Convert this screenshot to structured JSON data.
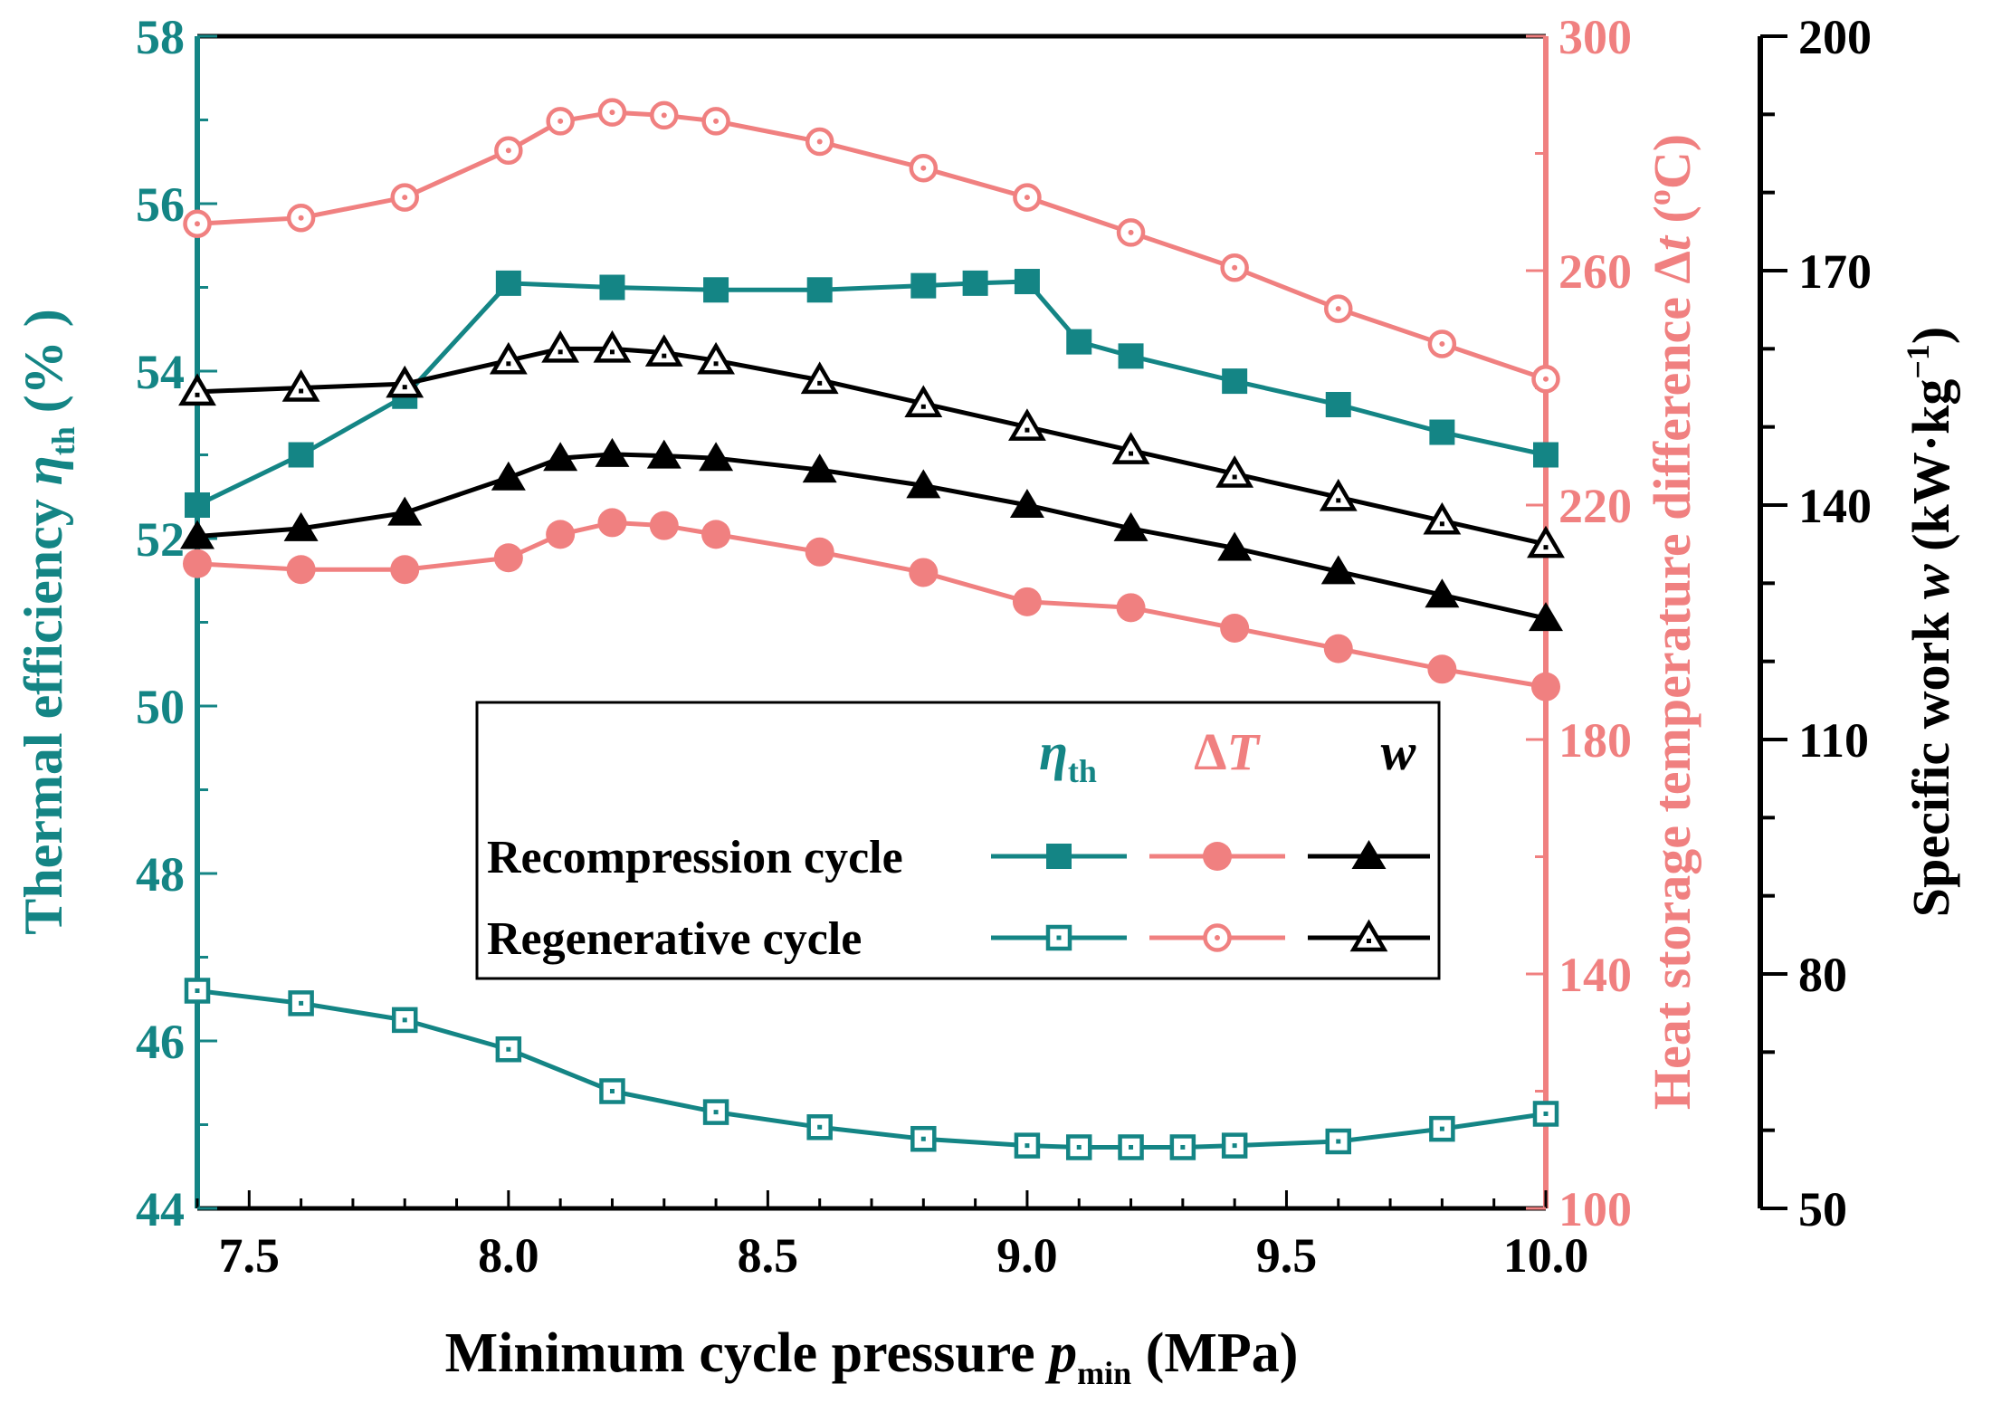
{
  "chart_data": {
    "type": "line",
    "title": "",
    "xlabel": {
      "main": "Minimum cycle pressure ",
      "var": "p",
      "sub": "min",
      "unit": " (MPa)"
    },
    "x_ticks": [
      "7.5",
      "8.0",
      "8.5",
      "9.0",
      "9.5",
      "10.0"
    ],
    "xlim": [
      7.4,
      10.0
    ],
    "axes": {
      "left": {
        "label": {
          "main": "Thermal efficiency ",
          "var": "η",
          "sub": "th",
          "unit": " (% )"
        },
        "ylim": [
          44,
          58
        ],
        "ticks": [
          "44",
          "46",
          "48",
          "50",
          "52",
          "54",
          "56",
          "58"
        ],
        "color": "#148585"
      },
      "right1": {
        "label": {
          "main": "Heat storage temperature difference Δ",
          "var": "t",
          "unit": " (",
          "sup": "o",
          "tail": "C)"
        },
        "ylim": [
          100,
          300
        ],
        "ticks": [
          "100",
          "140",
          "180",
          "220",
          "260",
          "300"
        ],
        "color": "#f08080"
      },
      "right2": {
        "label": {
          "main": "Specific work ",
          "var": "w",
          "unit": " (kW·kg",
          "sup": "−1",
          "tail": ")"
        },
        "ylim": [
          50,
          200
        ],
        "ticks": [
          "50",
          "80",
          "110",
          "140",
          "170",
          "200"
        ],
        "color": "#000000"
      }
    },
    "legend": {
      "position": "center-right",
      "headers": [
        {
          "sym": "η",
          "sub": "th",
          "color": "#148585"
        },
        {
          "sym": "Δ",
          "var": "T",
          "color": "#f08080"
        },
        {
          "sym": "",
          "var": "w",
          "color": "#000000"
        }
      ],
      "rows": [
        "Recompression cycle",
        "Regenerative cycle"
      ]
    },
    "series": [
      {
        "name": "Recompression cycle η_th",
        "axis": "left",
        "color": "#148585",
        "marker": "square-filled",
        "x": [
          7.4,
          7.6,
          7.8,
          8.0,
          8.2,
          8.4,
          8.6,
          8.8,
          8.9,
          9.0,
          9.1,
          9.2,
          9.4,
          9.6,
          9.8,
          10.0
        ],
        "y": [
          52.4,
          53.0,
          53.7,
          55.05,
          55.0,
          54.97,
          54.97,
          55.02,
          55.05,
          55.07,
          54.35,
          54.18,
          53.88,
          53.6,
          53.27,
          53.0
        ]
      },
      {
        "name": "Regenerative cycle η_th",
        "axis": "left",
        "color": "#148585",
        "marker": "square-open",
        "x": [
          7.4,
          7.6,
          7.8,
          8.0,
          8.2,
          8.4,
          8.6,
          8.8,
          9.0,
          9.1,
          9.2,
          9.3,
          9.4,
          9.6,
          9.8,
          10.0
        ],
        "y": [
          46.6,
          46.45,
          46.25,
          45.9,
          45.4,
          45.15,
          44.97,
          44.83,
          44.75,
          44.73,
          44.73,
          44.73,
          44.75,
          44.8,
          44.95,
          45.13
        ]
      },
      {
        "name": "Recompression cycle ΔT",
        "axis": "right1",
        "color": "#f08080",
        "marker": "circle-filled",
        "x": [
          7.4,
          7.6,
          7.8,
          8.0,
          8.1,
          8.2,
          8.3,
          8.4,
          8.6,
          8.8,
          9.0,
          9.2,
          9.4,
          9.6,
          9.8,
          10.0
        ],
        "y": [
          210,
          209,
          209,
          211,
          215,
          217,
          216.5,
          215,
          212,
          208.5,
          203.5,
          202.5,
          199,
          195.5,
          192,
          189
        ]
      },
      {
        "name": "Regenerative cycle ΔT",
        "axis": "right1",
        "color": "#f08080",
        "marker": "circle-open",
        "x": [
          7.4,
          7.6,
          7.8,
          8.0,
          8.1,
          8.2,
          8.3,
          8.4,
          8.6,
          8.8,
          9.0,
          9.2,
          9.4,
          9.6,
          9.8,
          10.0
        ],
        "y": [
          268,
          269,
          272.5,
          280.5,
          285.5,
          287,
          286.5,
          285.5,
          282,
          277.5,
          272.5,
          266.5,
          260.5,
          253.5,
          247.5,
          241.5
        ]
      },
      {
        "name": "Recompression cycle w",
        "axis": "right2",
        "color": "#000000",
        "marker": "triangle-filled",
        "x": [
          7.4,
          7.6,
          7.8,
          8.0,
          8.1,
          8.2,
          8.3,
          8.4,
          8.6,
          8.8,
          9.0,
          9.2,
          9.4,
          9.6,
          9.8,
          10.0
        ],
        "y": [
          136,
          137,
          139,
          143.5,
          146,
          146.5,
          146.3,
          146,
          144.5,
          142.5,
          140,
          137,
          134.5,
          131.5,
          128.5,
          125.5
        ]
      },
      {
        "name": "Regenerative cycle w",
        "axis": "right2",
        "color": "#000000",
        "marker": "triangle-open",
        "x": [
          7.4,
          7.6,
          7.8,
          8.0,
          8.1,
          8.2,
          8.3,
          8.4,
          8.6,
          8.8,
          9.0,
          9.2,
          9.4,
          9.6,
          9.8,
          10.0
        ],
        "y": [
          154.5,
          155,
          155.5,
          158.5,
          160,
          160,
          159.5,
          158.5,
          156,
          153,
          150,
          147,
          144,
          141,
          138,
          135
        ]
      }
    ]
  }
}
